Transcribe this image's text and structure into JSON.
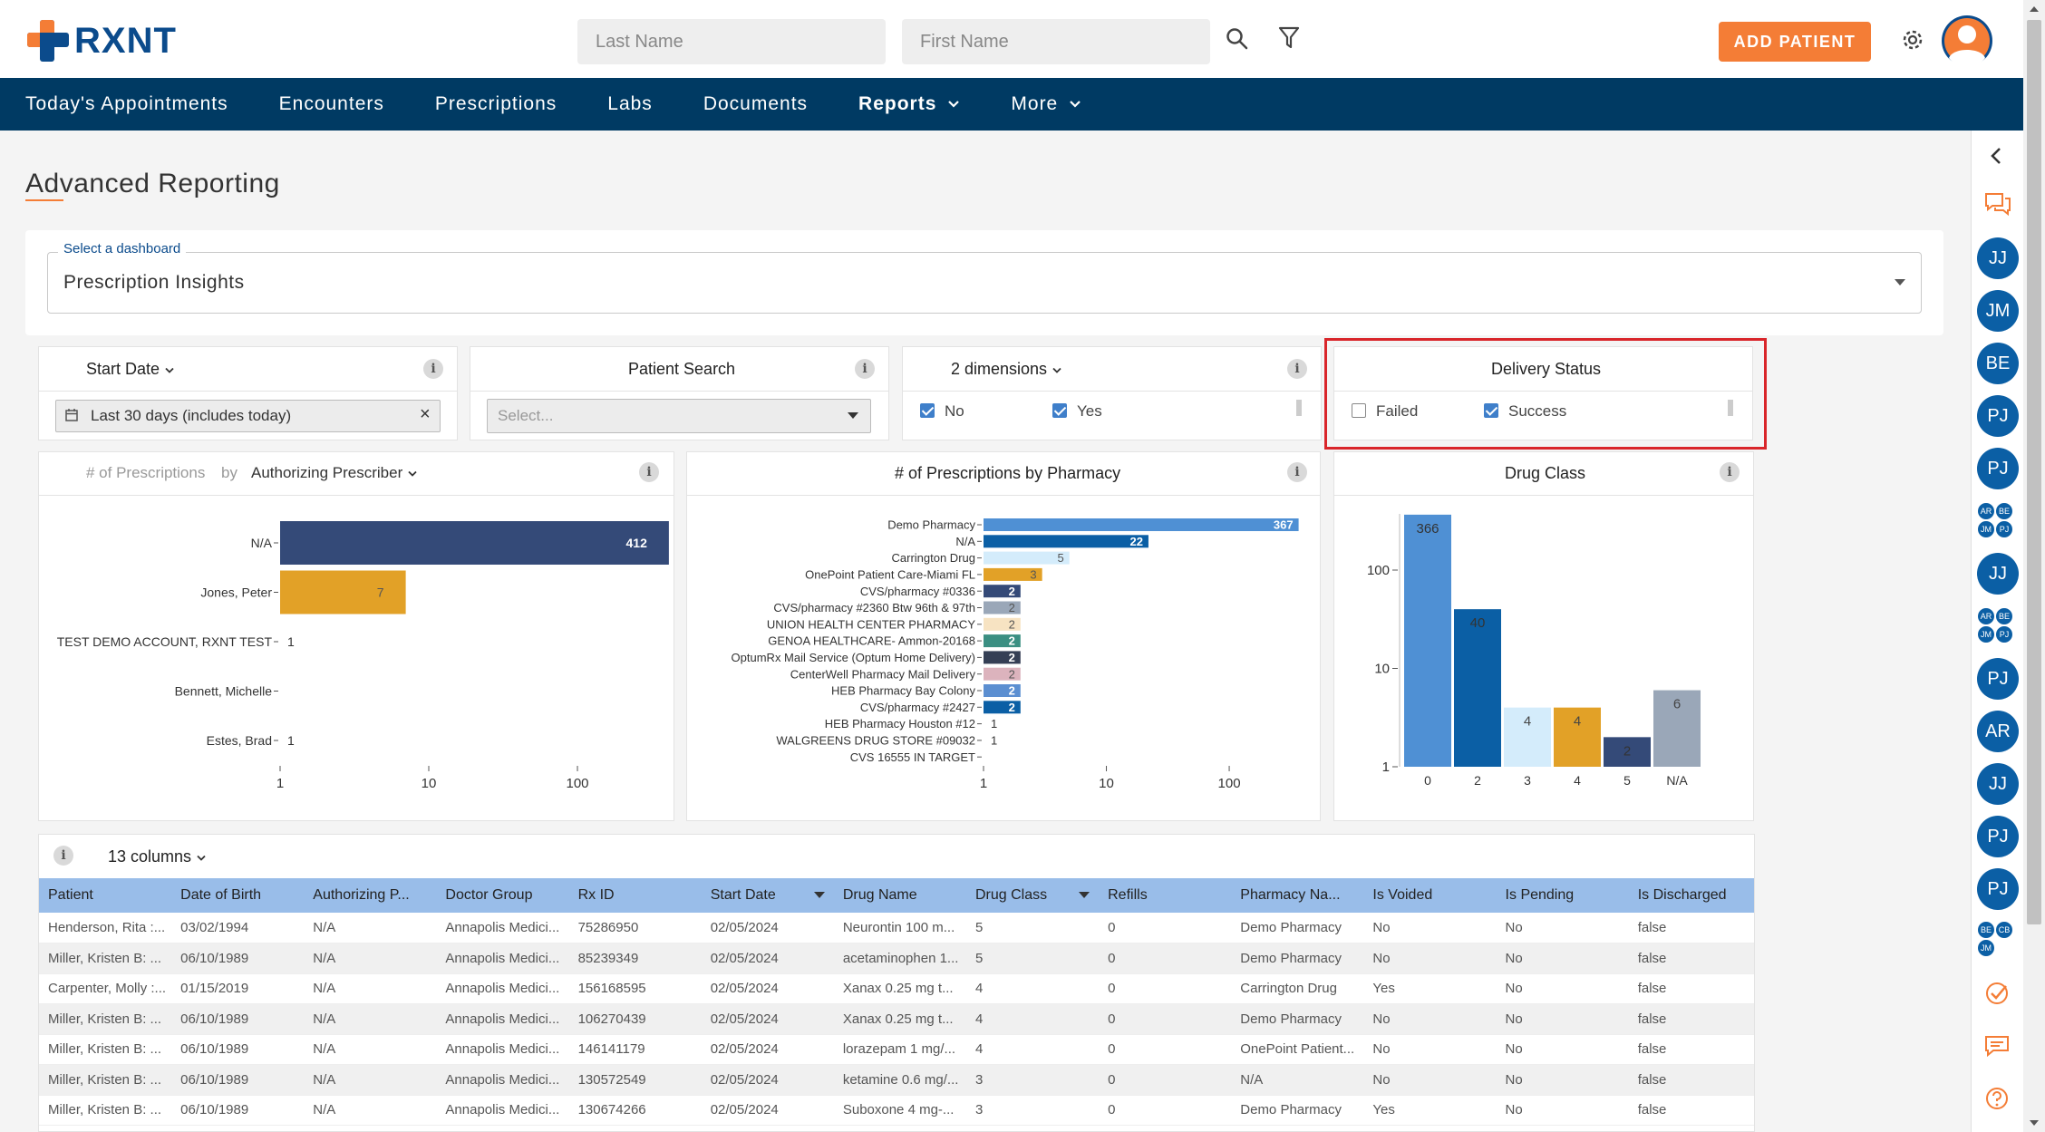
{
  "brand": {
    "name": "RXNT",
    "accent": "#f47d36",
    "primary": "#003a63"
  },
  "header": {
    "last_name_placeholder": "Last Name",
    "first_name_placeholder": "First Name",
    "add_patient_label": "ADD PATIENT",
    "icons": [
      "search-icon",
      "filter-icon",
      "gear-icon",
      "user-avatar-icon"
    ]
  },
  "nav": {
    "items": [
      "Today's Appointments",
      "Encounters",
      "Prescriptions",
      "Labs",
      "Documents"
    ],
    "reports": "Reports",
    "more": "More"
  },
  "page": {
    "title": "Advanced Reporting"
  },
  "dashboard": {
    "label": "Select a dashboard",
    "value": "Prescription Insights"
  },
  "filters": {
    "start_date": {
      "title": "Start Date",
      "value": "Last 30 days (includes today)",
      "clear": "×"
    },
    "patient_search": {
      "title": "Patient Search",
      "placeholder": "Select..."
    },
    "dimensions": {
      "title": "2 dimensions",
      "options": [
        {
          "label": "No",
          "checked": true
        },
        {
          "label": "Yes",
          "checked": true
        }
      ]
    },
    "delivery_status": {
      "title": "Delivery Status",
      "options": [
        {
          "label": "Failed",
          "checked": false
        },
        {
          "label": "Success",
          "checked": true
        }
      ]
    }
  },
  "chart_data": [
    {
      "type": "bar",
      "orientation": "horizontal",
      "title_prefix": "# of Prescriptions",
      "by": "by",
      "group_label": "Authorizing Prescriber",
      "categories": [
        "N/A",
        "Jones, Peter",
        "TEST DEMO ACCOUNT, RXNT TEST",
        "Bennett, Michelle",
        "Estes, Brad"
      ],
      "values": [
        412,
        7,
        1,
        null,
        1
      ],
      "labels": [
        "412",
        "7",
        "1",
        "",
        "1"
      ],
      "colors": [
        "#344a78",
        "#e2a127",
        "#344a78",
        "#344a78",
        "#344a78"
      ],
      "xscale": "log",
      "ticks": [
        "1",
        "10",
        "100"
      ]
    },
    {
      "type": "bar",
      "orientation": "horizontal",
      "title": "# of Prescriptions by Pharmacy",
      "categories": [
        "Demo Pharmacy",
        "N/A",
        "Carrington Drug",
        "OnePoint Patient Care-Miami FL",
        "CVS/pharmacy #0336",
        "CVS/pharmacy #2360 Btw 96th & 97th",
        "UNION HEALTH CENTER PHARMACY",
        "GENOA HEALTHCARE- Ammon-20168",
        "OptumRx Mail Service (Optum Home Delivery)",
        "CenterWell Pharmacy Mail Delivery",
        "HEB Pharmacy Bay Colony",
        "CVS/pharmacy #2427",
        "HEB Pharmacy Houston #12",
        "WALGREENS DRUG STORE #09032",
        "CVS 16555 IN TARGET"
      ],
      "values": [
        367,
        22,
        5,
        3,
        2,
        2,
        2,
        2,
        2,
        2,
        2,
        2,
        1,
        1,
        1
      ],
      "labels": [
        "367",
        "22",
        "5",
        "3",
        "2",
        "2",
        "2",
        "2",
        "2",
        "2",
        "2",
        "2",
        "1",
        "1",
        ""
      ],
      "colors": [
        "#4f90d4",
        "#0b5fa5",
        "#d4ecfb",
        "#e2a127",
        "#344a78",
        "#9aa7b8",
        "#f7e3c2",
        "#3b8f82",
        "#353f55",
        "#dcb3bd",
        "#5c8fd1",
        "#0b5fa5",
        "#ffffff",
        "#ffffff",
        "#ffffff"
      ],
      "xscale": "log",
      "ticks": [
        "1",
        "10",
        "100"
      ]
    },
    {
      "type": "bar",
      "orientation": "vertical",
      "title": "Drug Class",
      "categories": [
        "0",
        "2",
        "3",
        "4",
        "5",
        "N/A"
      ],
      "values": [
        366,
        40,
        4,
        4,
        2,
        6
      ],
      "labels": [
        "366",
        "40",
        "4",
        "4",
        "2",
        "6"
      ],
      "colors": [
        "#4f90d4",
        "#0b5fa5",
        "#d4ecfb",
        "#e2a127",
        "#344a78",
        "#9aa7b8"
      ],
      "yscale": "log",
      "ticks": [
        "1",
        "10",
        "100"
      ]
    }
  ],
  "table": {
    "columns_label": "13 columns",
    "headers": [
      "Patient",
      "Date of Birth",
      "Authorizing P...",
      "Doctor Group",
      "Rx ID",
      "Start Date",
      "Drug Name",
      "Drug Class",
      "Refills",
      "Pharmacy Na...",
      "Is Voided",
      "Is Pending",
      "Is Discharged"
    ],
    "rows": [
      [
        "Henderson, Rita :...",
        "03/02/1994",
        "N/A",
        "Annapolis Medici...",
        "75286950",
        "02/05/2024",
        "Neurontin 100 m...",
        "5",
        "0",
        "Demo Pharmacy",
        "No",
        "No",
        "false"
      ],
      [
        "Miller, Kristen B: ...",
        "06/10/1989",
        "N/A",
        "Annapolis Medici...",
        "85239349",
        "02/05/2024",
        "acetaminophen 1...",
        "5",
        "0",
        "Demo Pharmacy",
        "No",
        "No",
        "false"
      ],
      [
        "Carpenter, Molly :...",
        "01/15/2019",
        "N/A",
        "Annapolis Medici...",
        "156168595",
        "02/05/2024",
        "Xanax 0.25 mg t...",
        "4",
        "0",
        "Carrington Drug",
        "Yes",
        "No",
        "false"
      ],
      [
        "Miller, Kristen B: ...",
        "06/10/1989",
        "N/A",
        "Annapolis Medici...",
        "106270439",
        "02/05/2024",
        "Xanax 0.25 mg t...",
        "4",
        "0",
        "Demo Pharmacy",
        "No",
        "No",
        "false"
      ],
      [
        "Miller, Kristen B: ...",
        "06/10/1989",
        "N/A",
        "Annapolis Medici...",
        "146141179",
        "02/05/2024",
        "lorazepam 1 mg/...",
        "4",
        "0",
        "OnePoint Patient...",
        "No",
        "No",
        "false"
      ],
      [
        "Miller, Kristen B: ...",
        "06/10/1989",
        "N/A",
        "Annapolis Medici...",
        "130572549",
        "02/05/2024",
        "ketamine 0.6 mg/...",
        "3",
        "0",
        "N/A",
        "No",
        "No",
        "false"
      ],
      [
        "Miller, Kristen B: ...",
        "06/10/1989",
        "N/A",
        "Annapolis Medici...",
        "130674266",
        "02/05/2024",
        "Suboxone 4 mg-...",
        "3",
        "0",
        "Demo Pharmacy",
        "Yes",
        "No",
        "false"
      ]
    ]
  },
  "sidebar": {
    "avatars": [
      "JJ",
      "JM",
      "BE",
      "PJ",
      "PJ",
      "JJ",
      "PJ",
      "AR",
      "JJ",
      "PJ",
      "PJ"
    ],
    "group1": [
      "AR",
      "BE",
      "JM",
      "PJ"
    ],
    "group2": [
      "AR",
      "BE",
      "JM",
      "PJ"
    ],
    "group3": [
      "BE",
      "CB",
      "JM"
    ]
  }
}
